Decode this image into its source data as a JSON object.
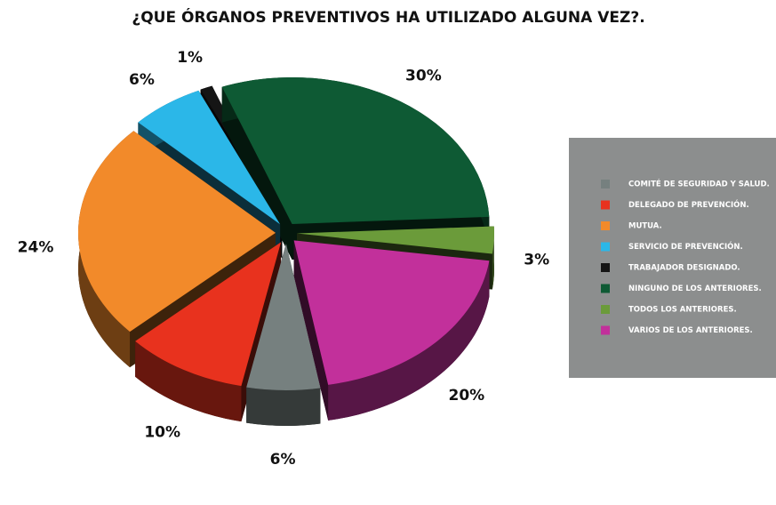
{
  "chart_data": {
    "type": "pie",
    "title": "¿QUE ÓRGANOS PREVENTIVOS HA UTILIZADO ALGUNA VEZ?.",
    "categories": [
      "COMITÉ DE SEGURIDAD Y SALUD.",
      "DELEGADO DE PREVENCIÓN.",
      "MUTUA.",
      "SERVICIO DE PREVENCIÓN.",
      "TRABAJADOR DESIGNADO.",
      "NINGUNO DE LOS ANTERIORES.",
      "TODOS LOS ANTERIORES.",
      "VARIOS DE LOS ANTERIORES."
    ],
    "values": [
      6,
      10,
      24,
      6,
      1,
      30,
      3,
      20
    ],
    "value_labels": [
      "6%",
      "10%",
      "24%",
      "6%",
      "1%",
      "30%",
      "3%",
      "20%"
    ],
    "colors": [
      "#76807f",
      "#e8321e",
      "#f28a2a",
      "#2bb7e8",
      "#151515",
      "#0e5a34",
      "#6b9b3a",
      "#c2309b"
    ],
    "legend": "right"
  }
}
